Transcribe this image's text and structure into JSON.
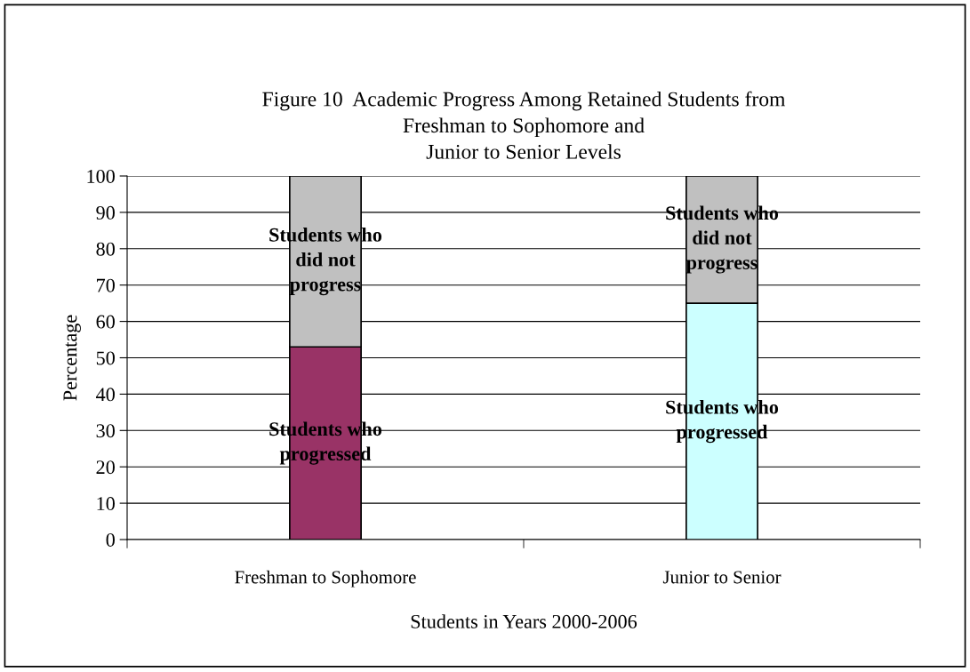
{
  "chart_data": {
    "type": "bar",
    "stacked": true,
    "title": "Figure 10  Academic Progress Among Retained Students from\nFreshman to Sophomore and\nJunior to Senior Levels",
    "xlabel": "Students in Years 2000-2006",
    "ylabel": "Percentage",
    "categories": [
      "Freshman to Sophomore",
      "Junior to Senior"
    ],
    "series": [
      {
        "name": "Students who\nprogressed",
        "colors": [
          "#993366",
          "#ccffff"
        ],
        "values": [
          53,
          65
        ]
      },
      {
        "name": "Students who\ndid not\nprogress",
        "color": "#c0c0c0",
        "values": [
          47,
          35
        ]
      }
    ],
    "ylim": [
      0,
      100
    ],
    "yticks": [
      0,
      10,
      20,
      30,
      40,
      50,
      60,
      70,
      80,
      90,
      100
    ],
    "grid": "y",
    "legend": false
  }
}
